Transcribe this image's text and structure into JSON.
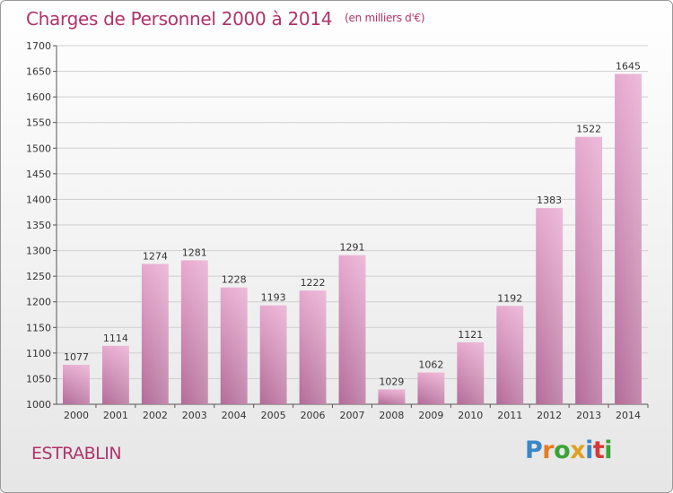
{
  "header": {
    "title": "Charges de Personnel 2000 à 2014",
    "subtitle": "(en milliers d'€)"
  },
  "footer": {
    "town": "ESTRABLIN",
    "logo": {
      "letters": [
        "P",
        "r",
        "o",
        "x",
        "i",
        "t",
        "i"
      ],
      "colors": [
        "#3a86c8",
        "#e87a20",
        "#3aa336",
        "#e0a020",
        "#3a86c8",
        "#d43a3a",
        "#3aa336"
      ]
    }
  },
  "colors": {
    "bar_top": "#e8a9d0",
    "bar_bottom": "#b36b98",
    "title": "#b0336a"
  },
  "chart_data": {
    "type": "bar",
    "categories": [
      "2000",
      "2001",
      "2002",
      "2003",
      "2004",
      "2005",
      "2006",
      "2007",
      "2008",
      "2009",
      "2010",
      "2011",
      "2012",
      "2013",
      "2014"
    ],
    "values": [
      1077,
      1114,
      1274,
      1281,
      1228,
      1193,
      1222,
      1291,
      1029,
      1062,
      1121,
      1192,
      1383,
      1522,
      1645
    ],
    "ylim": [
      1000,
      1700
    ],
    "yticks": [
      1000,
      1050,
      1100,
      1150,
      1200,
      1250,
      1300,
      1350,
      1400,
      1450,
      1500,
      1550,
      1600,
      1650,
      1700
    ],
    "grid": true,
    "data_labels": true
  }
}
